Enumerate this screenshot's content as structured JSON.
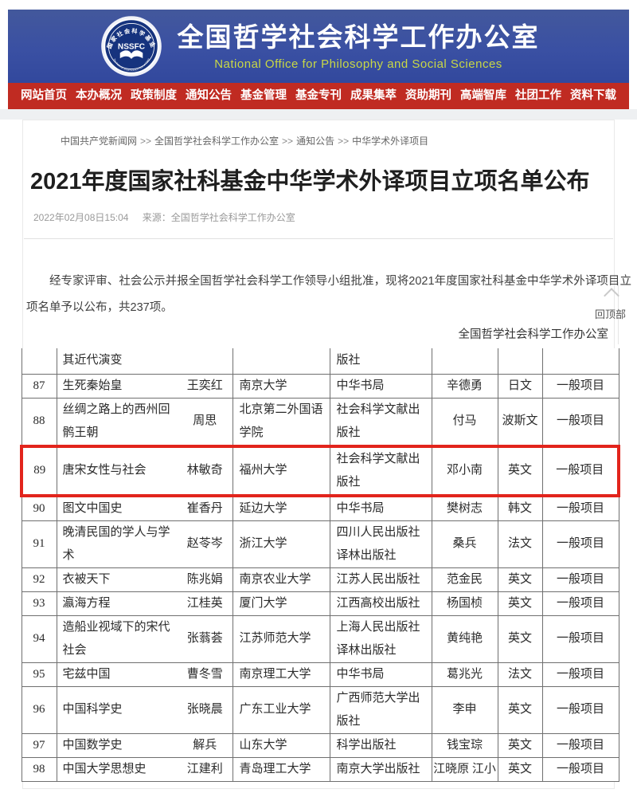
{
  "header": {
    "logo": {
      "abbr": "NSSFC",
      "top_arc": "国家社会科学基金",
      "bottom_arc": "The National Social Science Fund of China"
    },
    "title_cn": "全国哲学社会科学工作办公室",
    "title_en": "National Office for Philosophy and Social Sciences",
    "bg_color": "#3a50a3",
    "subtitle_color": "#c9d845"
  },
  "nav": {
    "bg_color": "#c02b22",
    "items": [
      "网站首页",
      "本办概况",
      "政策制度",
      "通知公告",
      "基金管理",
      "基金专刊",
      "成果集萃",
      "资助期刊",
      "高端智库",
      "社团工作",
      "资料下载"
    ]
  },
  "breadcrumb": {
    "separator": ">>",
    "items": [
      "中国共产党新闻网",
      "全国哲学社会科学工作办公室",
      "通知公告",
      "中华学术外译项目"
    ]
  },
  "article": {
    "title": "2021年度国家社科基金中华学术外译项目立项名单公布",
    "date": "2022年02月08日15:04",
    "source": "来源：全国哲学社会科学工作办公室",
    "paragraph": "经专家评审、社会公示并报全国哲学社会科学工作领导小组批准，现将2021年度国家社科基金中华学术外译项目立项名单予以公布，共237项。",
    "signature": "全国哲学社会科学工作办公室"
  },
  "back_to_top": {
    "label": "回顶部"
  },
  "table": {
    "highlight_color": "#e2241c",
    "highlight_row_no": "89",
    "rows": [
      {
        "no": "",
        "title": "其近代演变",
        "translator": "",
        "org": "",
        "publisher": "版社",
        "author": "",
        "lang": "",
        "type": "",
        "partial": true
      },
      {
        "no": "87",
        "title": "生死秦始皇",
        "translator": "王奕红",
        "org": "南京大学",
        "publisher": "中华书局",
        "author": "辛德勇",
        "lang": "日文",
        "type": "一般项目"
      },
      {
        "no": "88",
        "title": "丝绸之路上的西州回鹘王朝",
        "translator": "周思",
        "org": "北京第二外国语学院",
        "publisher": "社会科学文献出版社",
        "author": "付马",
        "lang": "波斯文",
        "type": "一般项目"
      },
      {
        "no": "89",
        "title": "唐宋女性与社会",
        "translator": "林敏奇",
        "org": "福州大学",
        "publisher": "社会科学文献出版社",
        "author": "邓小南",
        "lang": "英文",
        "type": "一般项目"
      },
      {
        "no": "90",
        "title": "图文中国史",
        "translator": "崔香丹",
        "org": "延边大学",
        "publisher": "中华书局",
        "author": "樊树志",
        "lang": "韩文",
        "type": "一般项目"
      },
      {
        "no": "91",
        "title": "晚清民国的学人与学术",
        "translator": "赵苓岑",
        "org": "浙江大学",
        "publisher": "四川人民出版社\n译林出版社",
        "author": "桑兵",
        "lang": "法文",
        "type": "一般项目"
      },
      {
        "no": "92",
        "title": "衣被天下",
        "translator": "陈兆娟",
        "org": "南京农业大学",
        "publisher": "江苏人民出版社",
        "author": "范金民",
        "lang": "英文",
        "type": "一般项目"
      },
      {
        "no": "93",
        "title": "瀛海方程",
        "translator": "江桂英",
        "org": "厦门大学",
        "publisher": "江西高校出版社",
        "author": "杨国桢",
        "lang": "英文",
        "type": "一般项目"
      },
      {
        "no": "94",
        "title": "造船业视域下的宋代社会",
        "translator": "张蓊荟",
        "org": "江苏师范大学",
        "publisher": "上海人民出版社\n译林出版社",
        "author": "黄纯艳",
        "lang": "英文",
        "type": "一般项目"
      },
      {
        "no": "95",
        "title": "宅兹中国",
        "translator": "曹冬雪",
        "org": "南京理工大学",
        "publisher": "中华书局",
        "author": "葛兆光",
        "lang": "法文",
        "type": "一般项目"
      },
      {
        "no": "96",
        "title": "中国科学史",
        "translator": "张晓晨",
        "org": "广东工业大学",
        "publisher": "广西师范大学出版社",
        "author": "李申",
        "lang": "英文",
        "type": "一般项目"
      },
      {
        "no": "97",
        "title": "中国数学史",
        "translator": "解兵",
        "org": "山东大学",
        "publisher": "科学出版社",
        "author": "钱宝琮",
        "lang": "英文",
        "type": "一般项目"
      },
      {
        "no": "98",
        "title": "中国大学思想史",
        "translator": "江建利",
        "org": "青岛理工大学",
        "publisher": "南京大学出版社",
        "author": "江晓原 江小",
        "lang": "英文",
        "type": "一般项目"
      }
    ]
  }
}
